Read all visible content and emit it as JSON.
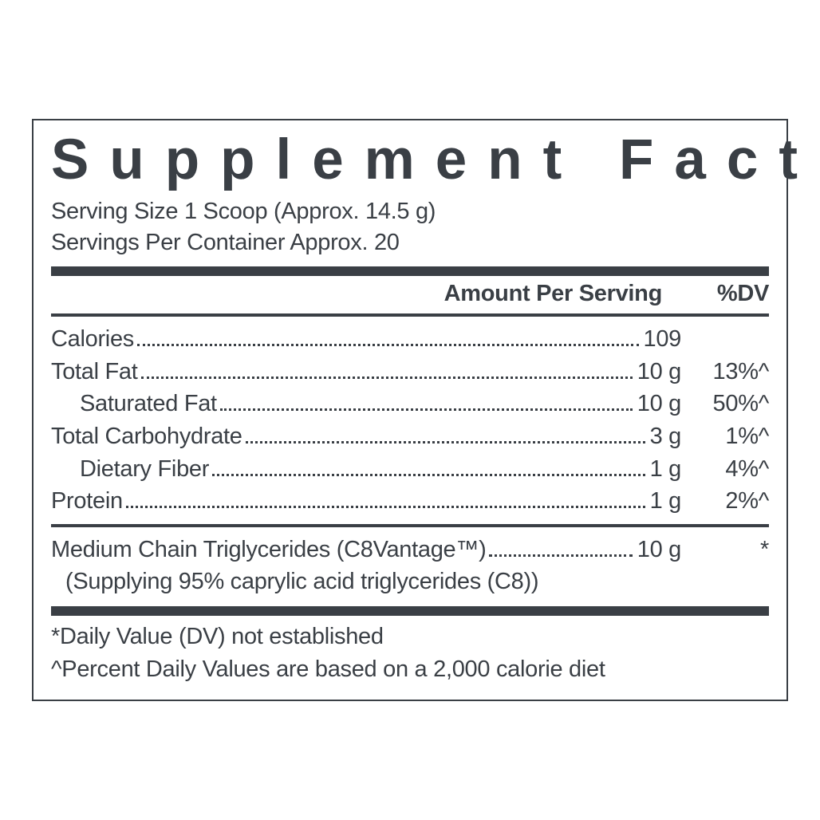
{
  "panel": {
    "title": "Supplement Facts",
    "serving_size": "Serving Size 1 Scoop (Approx. 14.5 g)",
    "servings_per": "Servings Per Container Approx. 20",
    "header_amount": "Amount Per Serving",
    "header_dv": "%DV",
    "rows": [
      {
        "label": "Calories",
        "indent": false,
        "value": "109",
        "dv": ""
      },
      {
        "label": "Total Fat",
        "indent": false,
        "value": "10 g",
        "dv": "13%^"
      },
      {
        "label": "Saturated Fat",
        "indent": true,
        "value": "10 g",
        "dv": "50%^"
      },
      {
        "label": "Total Carbohydrate",
        "indent": false,
        "value": "3 g",
        "dv": "1%^"
      },
      {
        "label": "Dietary Fiber",
        "indent": true,
        "value": "1 g",
        "dv": "4%^"
      },
      {
        "label": "Protein",
        "indent": false,
        "value": "1 g",
        "dv": "2%^"
      }
    ],
    "mct": {
      "label": "Medium Chain Triglycerides (C8Vantage™)",
      "value": "10 g",
      "dv": "*",
      "sub": "(Supplying 95% caprylic acid triglycerides (C8))"
    },
    "footnote1": "*Daily Value (DV) not established",
    "footnote2": "^Percent Daily Values are based on a 2,000 calorie diet",
    "colors": {
      "text": "#3a3f45",
      "border": "#3a3f45",
      "background": "#ffffff"
    },
    "type": "nutrition-facts-table"
  }
}
